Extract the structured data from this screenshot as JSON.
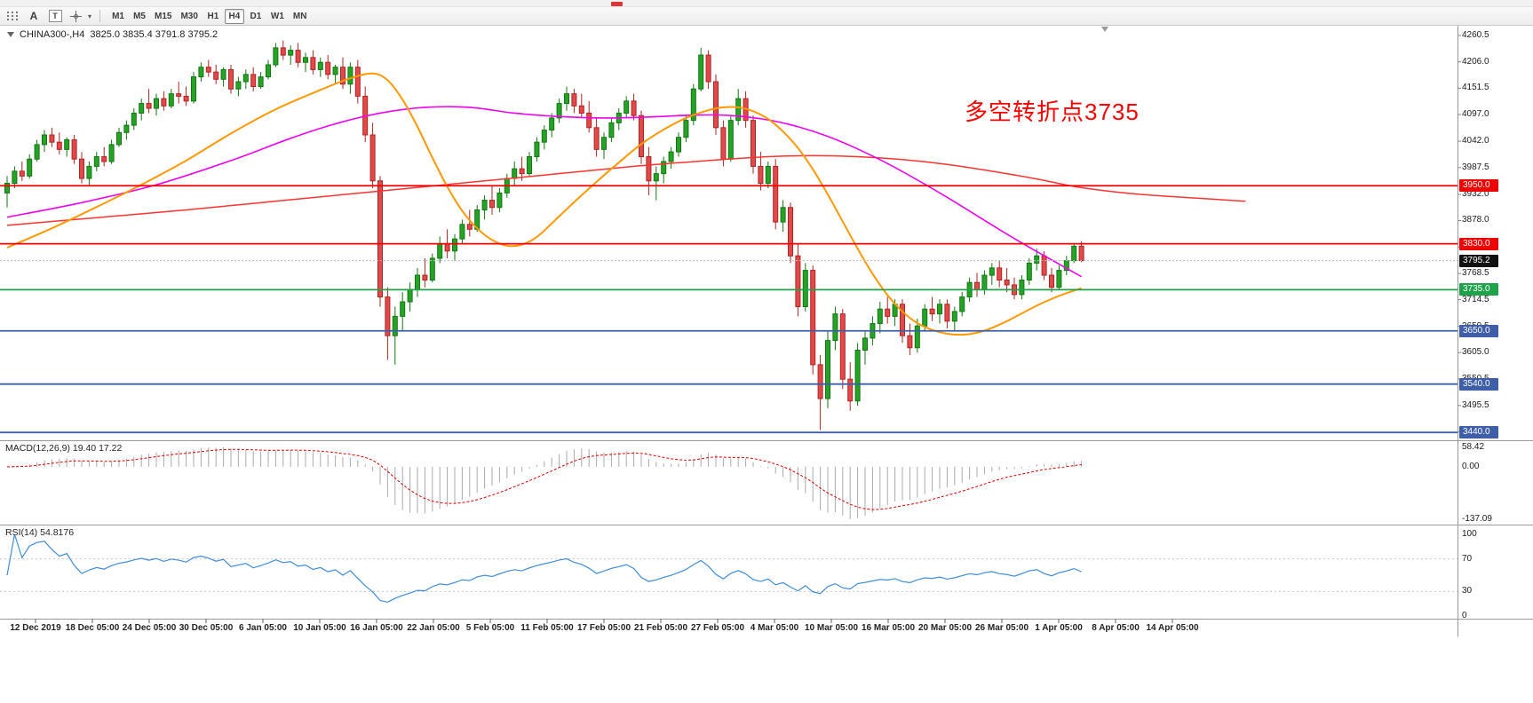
{
  "toolbar": {
    "font_tool_label": "A",
    "text_tool_label": "T",
    "timeframes": [
      "M1",
      "M5",
      "M15",
      "M30",
      "H1",
      "H4",
      "D1",
      "W1",
      "MN"
    ],
    "active_timeframe": "H4"
  },
  "chart": {
    "symbol_period": "CHINA300-,H4",
    "ohlc_text": "3825.0 3835.4 3791.8 3795.2",
    "annotation": {
      "text": "多空转折点3735",
      "color": "#FF0000"
    },
    "price_axis_labels": [
      "4260.5",
      "4206.0",
      "4151.5",
      "4097.0",
      "4042.0",
      "3987.5",
      "3932.0",
      "3878.0",
      "3823.5",
      "3768.5",
      "3714.5",
      "3659.5",
      "3605.0",
      "3550.5",
      "3495.5",
      "3441.0"
    ],
    "horizontal_lines": [
      {
        "label": "3950.0",
        "price": 3950.0,
        "color": "#F00000"
      },
      {
        "label": "3830.0",
        "price": 3830.0,
        "color": "#F00000"
      },
      {
        "label": "3735.0",
        "price": 3735.0,
        "color": "#1FA34A"
      },
      {
        "label": "3650.0",
        "price": 3650.0,
        "color": "#3E5FA8"
      },
      {
        "label": "3540.0",
        "price": 3540.0,
        "color": "#3E5FA8"
      },
      {
        "label": "3440.0",
        "price": 3440.0,
        "color": "#3E5FA8"
      }
    ],
    "current_price": {
      "label": "3795.2",
      "price": 3795.2,
      "color": "#111111"
    },
    "colors": {
      "bull": "#26A326",
      "bull_border": "#117711",
      "bear": "#E04A4A",
      "bear_border": "#B22222",
      "ma_magenta": "#EE00EE",
      "ma_orange": "#FF9900",
      "ma_red": "#FF3232",
      "macd_hist": "#ABABAB",
      "macd_signal": "#E00000",
      "rsi_line": "#3F8CD8"
    }
  },
  "macd_panel": {
    "name": "MACD(12,26,9)",
    "main_value": "19.40",
    "signal_value": "17.22",
    "scale": {
      "max": "58.42",
      "zero": "0.00",
      "min": "-137.09"
    }
  },
  "rsi_panel": {
    "name": "RSI(14)",
    "value": "54.8176",
    "scale": [
      "100",
      "70",
      "30",
      "0"
    ],
    "levels": [
      70,
      30
    ]
  },
  "time_axis_labels": [
    "12 Dec 2019",
    "18 Dec 05:00",
    "24 Dec 05:00",
    "30 Dec 05:00",
    "6 Jan 05:00",
    "10 Jan 05:00",
    "16 Jan 05:00",
    "22 Jan 05:00",
    "5 Feb 05:00",
    "11 Feb 05:00",
    "17 Feb 05:00",
    "21 Feb 05:00",
    "27 Feb 05:00",
    "4 Mar 05:00",
    "10 Mar 05:00",
    "16 Mar 05:00",
    "20 Mar 05:00",
    "26 Mar 05:00",
    "1 Apr 05:00",
    "8 Apr 05:00",
    "14 Apr 05:00"
  ],
  "chart_data": {
    "type": "candlestick",
    "symbol": "CHINA300-",
    "timeframe": "H4",
    "ohlc_last": {
      "open": 3825.0,
      "high": 3835.4,
      "low": 3791.8,
      "close": 3795.2
    },
    "ylim": [
      3441.0,
      4260.5
    ],
    "candles": [
      [
        3935,
        3970,
        3905,
        3955
      ],
      [
        3955,
        3990,
        3945,
        3980
      ],
      [
        3980,
        4000,
        3960,
        3970
      ],
      [
        3970,
        4015,
        3965,
        4005
      ],
      [
        4005,
        4045,
        4000,
        4035
      ],
      [
        4035,
        4065,
        4020,
        4055
      ],
      [
        4055,
        4070,
        4030,
        4040
      ],
      [
        4040,
        4060,
        4015,
        4025
      ],
      [
        4025,
        4050,
        4010,
        4045
      ],
      [
        4045,
        4055,
        3995,
        4005
      ],
      [
        4005,
        4020,
        3955,
        3965
      ],
      [
        3965,
        4000,
        3950,
        3990
      ],
      [
        3990,
        4020,
        3980,
        4010
      ],
      [
        4010,
        4030,
        3990,
        4000
      ],
      [
        4000,
        4045,
        3995,
        4035
      ],
      [
        4035,
        4070,
        4030,
        4060
      ],
      [
        4060,
        4085,
        4045,
        4075
      ],
      [
        4075,
        4110,
        4065,
        4100
      ],
      [
        4100,
        4130,
        4085,
        4120
      ],
      [
        4120,
        4150,
        4100,
        4110
      ],
      [
        4110,
        4140,
        4095,
        4130
      ],
      [
        4130,
        4145,
        4105,
        4115
      ],
      [
        4115,
        4150,
        4110,
        4140
      ],
      [
        4140,
        4165,
        4120,
        4135
      ],
      [
        4135,
        4155,
        4115,
        4125
      ],
      [
        4125,
        4185,
        4120,
        4175
      ],
      [
        4175,
        4205,
        4165,
        4195
      ],
      [
        4195,
        4210,
        4175,
        4185
      ],
      [
        4185,
        4200,
        4160,
        4170
      ],
      [
        4170,
        4195,
        4155,
        4190
      ],
      [
        4190,
        4200,
        4140,
        4150
      ],
      [
        4150,
        4175,
        4135,
        4165
      ],
      [
        4165,
        4190,
        4150,
        4180
      ],
      [
        4180,
        4195,
        4145,
        4155
      ],
      [
        4155,
        4185,
        4150,
        4175
      ],
      [
        4175,
        4210,
        4170,
        4200
      ],
      [
        4200,
        4245,
        4195,
        4235
      ],
      [
        4235,
        4250,
        4210,
        4220
      ],
      [
        4220,
        4240,
        4200,
        4230
      ],
      [
        4230,
        4245,
        4195,
        4205
      ],
      [
        4205,
        4225,
        4185,
        4215
      ],
      [
        4215,
        4230,
        4180,
        4190
      ],
      [
        4190,
        4215,
        4175,
        4205
      ],
      [
        4205,
        4220,
        4170,
        4180
      ],
      [
        4180,
        4200,
        4160,
        4195
      ],
      [
        4195,
        4215,
        4150,
        4160
      ],
      [
        4160,
        4205,
        4140,
        4195
      ],
      [
        4195,
        4210,
        4120,
        4135
      ],
      [
        4135,
        4155,
        4040,
        4055
      ],
      [
        4055,
        4080,
        3945,
        3960
      ],
      [
        3960,
        3970,
        3700,
        3720
      ],
      [
        3720,
        3740,
        3590,
        3640
      ],
      [
        3640,
        3700,
        3580,
        3680
      ],
      [
        3680,
        3730,
        3650,
        3710
      ],
      [
        3710,
        3750,
        3690,
        3735
      ],
      [
        3735,
        3780,
        3720,
        3765
      ],
      [
        3765,
        3800,
        3740,
        3755
      ],
      [
        3755,
        3810,
        3750,
        3800
      ],
      [
        3800,
        3845,
        3790,
        3830
      ],
      [
        3830,
        3860,
        3800,
        3815
      ],
      [
        3815,
        3850,
        3795,
        3840
      ],
      [
        3840,
        3880,
        3830,
        3870
      ],
      [
        3870,
        3900,
        3845,
        3860
      ],
      [
        3860,
        3910,
        3855,
        3900
      ],
      [
        3900,
        3930,
        3880,
        3920
      ],
      [
        3920,
        3950,
        3890,
        3905
      ],
      [
        3905,
        3945,
        3895,
        3935
      ],
      [
        3935,
        3975,
        3925,
        3965
      ],
      [
        3965,
        4000,
        3950,
        3985
      ],
      [
        3985,
        4010,
        3960,
        3975
      ],
      [
        3975,
        4020,
        3970,
        4010
      ],
      [
        4010,
        4050,
        4000,
        4040
      ],
      [
        4040,
        4075,
        4025,
        4065
      ],
      [
        4065,
        4100,
        4050,
        4090
      ],
      [
        4090,
        4130,
        4080,
        4120
      ],
      [
        4120,
        4155,
        4105,
        4140
      ],
      [
        4140,
        4150,
        4100,
        4115
      ],
      [
        4115,
        4140,
        4090,
        4100
      ],
      [
        4100,
        4125,
        4060,
        4070
      ],
      [
        4070,
        4090,
        4010,
        4025
      ],
      [
        4025,
        4060,
        4005,
        4050
      ],
      [
        4050,
        4090,
        4040,
        4080
      ],
      [
        4080,
        4110,
        4065,
        4100
      ],
      [
        4100,
        4135,
        4090,
        4125
      ],
      [
        4125,
        4140,
        4085,
        4095
      ],
      [
        4095,
        4105,
        3995,
        4010
      ],
      [
        4010,
        4030,
        3930,
        3960
      ],
      [
        3960,
        3990,
        3920,
        3975
      ],
      [
        3975,
        4010,
        3955,
        4000
      ],
      [
        4000,
        4030,
        3985,
        4020
      ],
      [
        4020,
        4060,
        4010,
        4050
      ],
      [
        4050,
        4095,
        4040,
        4085
      ],
      [
        4085,
        4160,
        4075,
        4150
      ],
      [
        4150,
        4235,
        4145,
        4220
      ],
      [
        4220,
        4230,
        4150,
        4165
      ],
      [
        4165,
        4180,
        4055,
        4070
      ],
      [
        4070,
        4085,
        3990,
        4005
      ],
      [
        4005,
        4095,
        4000,
        4085
      ],
      [
        4085,
        4150,
        4075,
        4130
      ],
      [
        4130,
        4145,
        4070,
        4085
      ],
      [
        4085,
        4095,
        3975,
        3990
      ],
      [
        3990,
        4020,
        3940,
        3955
      ],
      [
        3955,
        4000,
        3945,
        3990
      ],
      [
        3990,
        4005,
        3860,
        3875
      ],
      [
        3875,
        3920,
        3855,
        3905
      ],
      [
        3905,
        3915,
        3790,
        3805
      ],
      [
        3805,
        3830,
        3680,
        3700
      ],
      [
        3700,
        3790,
        3690,
        3775
      ],
      [
        3775,
        3785,
        3560,
        3580
      ],
      [
        3580,
        3600,
        3445,
        3510
      ],
      [
        3510,
        3650,
        3490,
        3630
      ],
      [
        3630,
        3700,
        3610,
        3685
      ],
      [
        3685,
        3695,
        3530,
        3550
      ],
      [
        3550,
        3585,
        3485,
        3505
      ],
      [
        3505,
        3625,
        3495,
        3610
      ],
      [
        3610,
        3650,
        3580,
        3635
      ],
      [
        3635,
        3680,
        3620,
        3665
      ],
      [
        3665,
        3710,
        3645,
        3695
      ],
      [
        3695,
        3720,
        3665,
        3680
      ],
      [
        3680,
        3715,
        3660,
        3705
      ],
      [
        3705,
        3715,
        3625,
        3640
      ],
      [
        3640,
        3665,
        3600,
        3615
      ],
      [
        3615,
        3675,
        3605,
        3660
      ],
      [
        3660,
        3705,
        3650,
        3695
      ],
      [
        3695,
        3720,
        3670,
        3685
      ],
      [
        3685,
        3715,
        3665,
        3705
      ],
      [
        3705,
        3715,
        3655,
        3670
      ],
      [
        3670,
        3700,
        3650,
        3690
      ],
      [
        3690,
        3730,
        3680,
        3720
      ],
      [
        3720,
        3760,
        3710,
        3750
      ],
      [
        3750,
        3770,
        3720,
        3735
      ],
      [
        3735,
        3775,
        3725,
        3765
      ],
      [
        3765,
        3790,
        3745,
        3780
      ],
      [
        3780,
        3795,
        3740,
        3755
      ],
      [
        3755,
        3780,
        3730,
        3745
      ],
      [
        3745,
        3760,
        3715,
        3725
      ],
      [
        3725,
        3765,
        3715,
        3755
      ],
      [
        3755,
        3800,
        3745,
        3790
      ],
      [
        3790,
        3820,
        3775,
        3805
      ],
      [
        3805,
        3815,
        3755,
        3765
      ],
      [
        3765,
        3780,
        3730,
        3740
      ],
      [
        3740,
        3785,
        3735,
        3775
      ],
      [
        3775,
        3805,
        3765,
        3795
      ],
      [
        3795,
        3832,
        3790,
        3825
      ],
      [
        3825,
        3835.4,
        3791.8,
        3795.2
      ]
    ],
    "moving_averages": [
      {
        "name": "ma-red-long",
        "color_key": "ma_red",
        "width": 1.5,
        "points": [
          [
            0,
            3868
          ],
          [
            12,
            3884
          ],
          [
            24,
            3900
          ],
          [
            36,
            3918
          ],
          [
            48,
            3936
          ],
          [
            60,
            3954
          ],
          [
            72,
            3972
          ],
          [
            84,
            3990
          ],
          [
            94,
            4002
          ],
          [
            102,
            4010
          ],
          [
            108,
            4012
          ],
          [
            114,
            4010
          ],
          [
            120,
            4004
          ],
          [
            126,
            3994
          ],
          [
            132,
            3980
          ],
          [
            138,
            3964
          ],
          [
            144,
            3946
          ],
          [
            152,
            3932
          ],
          [
            166,
            3918
          ]
        ]
      },
      {
        "name": "ma-magenta-slow",
        "color_key": "ma_magenta",
        "width": 1.6,
        "points": [
          [
            0,
            3885
          ],
          [
            10,
            3915
          ],
          [
            20,
            3952
          ],
          [
            30,
            4002
          ],
          [
            38,
            4048
          ],
          [
            44,
            4078
          ],
          [
            50,
            4100
          ],
          [
            56,
            4112
          ],
          [
            62,
            4112
          ],
          [
            68,
            4100
          ],
          [
            74,
            4093
          ],
          [
            80,
            4090
          ],
          [
            86,
            4092
          ],
          [
            92,
            4096
          ],
          [
            97,
            4095
          ],
          [
            102,
            4086
          ],
          [
            106,
            4072
          ],
          [
            110,
            4052
          ],
          [
            114,
            4026
          ],
          [
            118,
            3996
          ],
          [
            122,
            3962
          ],
          [
            126,
            3926
          ],
          [
            130,
            3888
          ],
          [
            134,
            3850
          ],
          [
            138,
            3814
          ],
          [
            141,
            3788
          ],
          [
            144,
            3762
          ]
        ]
      },
      {
        "name": "ma-orange-fast",
        "color_key": "ma_orange",
        "width": 2,
        "points": [
          [
            0,
            3822
          ],
          [
            6,
            3862
          ],
          [
            12,
            3906
          ],
          [
            18,
            3952
          ],
          [
            24,
            4002
          ],
          [
            30,
            4058
          ],
          [
            36,
            4108
          ],
          [
            42,
            4148
          ],
          [
            46,
            4172
          ],
          [
            49,
            4182
          ],
          [
            51,
            4168
          ],
          [
            53,
            4128
          ],
          [
            55,
            4072
          ],
          [
            57,
            4008
          ],
          [
            59,
            3948
          ],
          [
            61,
            3898
          ],
          [
            63,
            3862
          ],
          [
            65,
            3838
          ],
          [
            67,
            3826
          ],
          [
            69,
            3828
          ],
          [
            71,
            3844
          ],
          [
            73,
            3872
          ],
          [
            76,
            3916
          ],
          [
            79,
            3958
          ],
          [
            82,
            3998
          ],
          [
            85,
            4036
          ],
          [
            88,
            4066
          ],
          [
            91,
            4090
          ],
          [
            94,
            4106
          ],
          [
            96,
            4112
          ],
          [
            98,
            4112
          ],
          [
            100,
            4104
          ],
          [
            102,
            4088
          ],
          [
            104,
            4062
          ],
          [
            106,
            4028
          ],
          [
            108,
            3984
          ],
          [
            110,
            3932
          ],
          [
            112,
            3876
          ],
          [
            114,
            3820
          ],
          [
            116,
            3768
          ],
          [
            118,
            3724
          ],
          [
            120,
            3690
          ],
          [
            122,
            3666
          ],
          [
            124,
            3652
          ],
          [
            126,
            3644
          ],
          [
            128,
            3642
          ],
          [
            130,
            3646
          ],
          [
            132,
            3656
          ],
          [
            134,
            3670
          ],
          [
            136,
            3686
          ],
          [
            138,
            3702
          ],
          [
            140,
            3716
          ],
          [
            142,
            3728
          ],
          [
            144,
            3738
          ]
        ]
      }
    ],
    "indicators": {
      "macd": {
        "fast": 12,
        "slow": 26,
        "signal": 9
      },
      "rsi": {
        "period": 14
      }
    }
  }
}
